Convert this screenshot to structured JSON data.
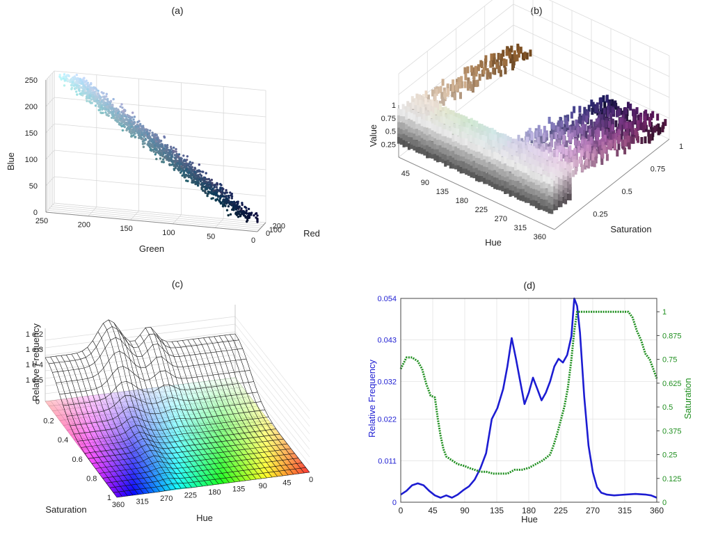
{
  "panels": {
    "a": {
      "title": "(a)",
      "xlabel": "Green",
      "ylabel": "Red",
      "zlabel": "Blue",
      "x_ticks": [
        "250",
        "200",
        "150",
        "100",
        "50",
        "0"
      ],
      "y_ticks": [
        "0",
        "100",
        "200"
      ],
      "z_ticks": [
        "0",
        "50",
        "100",
        "150",
        "200",
        "250"
      ]
    },
    "b": {
      "title": "(b)",
      "xlabel": "Hue",
      "ylabel": "Saturation",
      "zlabel": "Value",
      "x_ticks": [
        "45",
        "90",
        "135",
        "180",
        "225",
        "270",
        "315",
        "360"
      ],
      "y_ticks": [
        "0.25",
        "0.5",
        "0.75",
        "1"
      ],
      "z_ticks": [
        "0.25",
        "0.5",
        "0.75",
        "1"
      ]
    },
    "c": {
      "title": "(c)",
      "xlabel": "Hue",
      "ylabel": "Saturation",
      "zlabel": "Relative Frequency",
      "x_ticks": [
        "360",
        "315",
        "270",
        "225",
        "180",
        "135",
        "90",
        "45",
        "0"
      ],
      "y_ticks": [
        "0",
        "0.2",
        "0.4",
        "0.6",
        "0.8",
        "1"
      ],
      "z_ticks": [
        "1 e-5",
        "1 e-4",
        "1 e-3",
        "1 e-2"
      ]
    },
    "d": {
      "title": "(d)"
    }
  },
  "chart_data": [
    {
      "type": "scatter",
      "title": "(a)",
      "xlabel": "Green",
      "ylabel": "Red",
      "zlabel": "Blue",
      "xlim": [
        0,
        250
      ],
      "ylim": [
        0,
        250
      ],
      "zlim": [
        0,
        250
      ],
      "grid": true
    },
    {
      "type": "scatter",
      "title": "(b)",
      "xlabel": "Hue",
      "ylabel": "Saturation",
      "zlabel": "Value",
      "xlim": [
        0,
        360
      ],
      "ylim": [
        0,
        1
      ],
      "zlim": [
        0,
        1
      ],
      "grid": true
    },
    {
      "type": "area",
      "title": "(c)",
      "xlabel": "Hue",
      "ylabel": "Saturation",
      "zlabel": "Relative Frequency",
      "xlim": [
        0,
        360
      ],
      "ylim": [
        0,
        1
      ],
      "zscale": "log",
      "grid": true
    },
    {
      "type": "line",
      "title": "(d)",
      "xlabel": "Hue",
      "ylabel": "Relative Frequency",
      "ylabel_right": "Saturation",
      "xlim": [
        0,
        360
      ],
      "ylim": [
        0,
        0.054
      ],
      "ylim_right": [
        0,
        1.07
      ],
      "x_ticks": [
        "0",
        "45",
        "90",
        "135",
        "180",
        "225",
        "270",
        "315",
        "360"
      ],
      "y_ticks": [
        "0",
        "0.011",
        "0.022",
        "0.032",
        "0.043",
        "0.054"
      ],
      "y_ticks_right": [
        "0",
        "0.125",
        "0.25",
        "0.375",
        "0.5",
        "0.625",
        "0.75",
        "0.875",
        "1"
      ],
      "grid": true,
      "series": [
        {
          "axis": "left",
          "color": "#1c1cd2",
          "style": "solid",
          "x": [
            0,
            8,
            16,
            24,
            32,
            40,
            48,
            56,
            64,
            72,
            80,
            88,
            96,
            104,
            112,
            120,
            128,
            136,
            144,
            150,
            156,
            162,
            168,
            174,
            180,
            186,
            192,
            198,
            204,
            210,
            216,
            222,
            228,
            234,
            240,
            244,
            248,
            252,
            258,
            264,
            270,
            276,
            282,
            290,
            300,
            315,
            330,
            345,
            352,
            360
          ],
          "y": [
            0.002,
            0.003,
            0.0045,
            0.005,
            0.0045,
            0.003,
            0.0018,
            0.0012,
            0.0018,
            0.0012,
            0.002,
            0.0032,
            0.0042,
            0.006,
            0.009,
            0.013,
            0.022,
            0.025,
            0.03,
            0.036,
            0.0435,
            0.038,
            0.032,
            0.026,
            0.029,
            0.033,
            0.03,
            0.027,
            0.029,
            0.032,
            0.036,
            0.038,
            0.037,
            0.039,
            0.044,
            0.054,
            0.052,
            0.045,
            0.028,
            0.015,
            0.008,
            0.004,
            0.0025,
            0.002,
            0.0018,
            0.002,
            0.0022,
            0.002,
            0.0018,
            0.0012
          ]
        },
        {
          "axis": "right",
          "color": "#1f8f1f",
          "style": "dotted",
          "x": [
            0,
            4,
            8,
            16,
            24,
            30,
            36,
            42,
            48,
            52,
            56,
            60,
            64,
            72,
            80,
            90,
            96,
            104,
            112,
            120,
            130,
            140,
            150,
            160,
            170,
            180,
            190,
            200,
            210,
            215,
            220,
            225,
            230,
            235,
            240,
            244,
            248,
            252,
            256,
            300,
            320,
            326,
            332,
            338,
            344,
            350,
            360
          ],
          "y": [
            0.7,
            0.73,
            0.76,
            0.76,
            0.74,
            0.7,
            0.62,
            0.56,
            0.55,
            0.44,
            0.35,
            0.28,
            0.24,
            0.22,
            0.2,
            0.19,
            0.18,
            0.17,
            0.16,
            0.16,
            0.15,
            0.15,
            0.15,
            0.17,
            0.17,
            0.18,
            0.2,
            0.22,
            0.25,
            0.3,
            0.36,
            0.43,
            0.5,
            0.6,
            0.75,
            0.9,
            1.0,
            1.0,
            1.0,
            1.0,
            1.0,
            0.97,
            0.9,
            0.85,
            0.78,
            0.75,
            0.65
          ]
        }
      ]
    }
  ]
}
